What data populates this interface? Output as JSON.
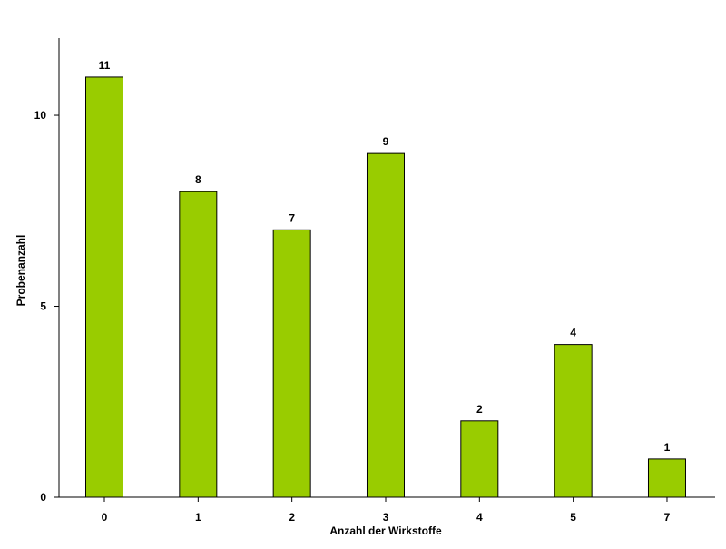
{
  "chart_data": {
    "type": "bar",
    "title": "",
    "xlabel": "Anzahl der Wirkstoffe",
    "ylabel": "Probenanzahl",
    "categories": [
      "0",
      "1",
      "2",
      "3",
      "4",
      "5",
      "7"
    ],
    "values": [
      11,
      8,
      7,
      9,
      2,
      4,
      1
    ],
    "data_labels": [
      "11",
      "8",
      "7",
      "9",
      "2",
      "4",
      "1"
    ],
    "yticks": [
      0,
      5,
      10
    ],
    "ytick_labels": [
      "0",
      "5",
      "10"
    ],
    "ylim": [
      0,
      12.02
    ],
    "grid": false,
    "legend": "none",
    "bar_color": "#99cc00",
    "bar_edge_color": "#000000"
  }
}
